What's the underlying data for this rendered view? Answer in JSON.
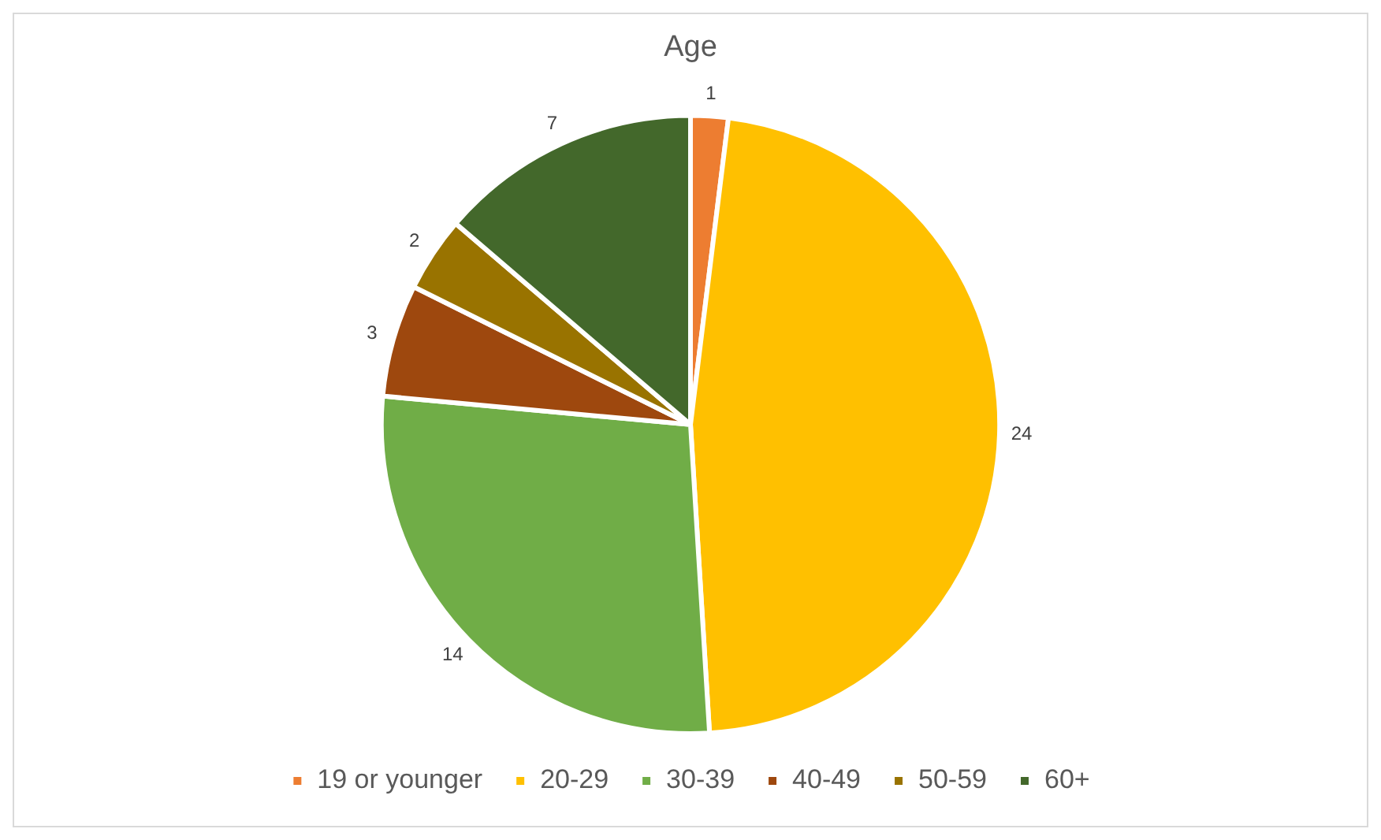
{
  "chart_data": {
    "type": "pie",
    "title": "Age",
    "categories": [
      "19 or younger",
      "20-29",
      "30-39",
      "40-49",
      "50-59",
      "60+"
    ],
    "values": [
      1,
      24,
      14,
      3,
      2,
      7
    ],
    "colors": [
      "#ed7d31",
      "#ffc000",
      "#70ad47",
      "#9e480e",
      "#997300",
      "#43682b"
    ],
    "data_labels": true,
    "legend": "bottom"
  }
}
